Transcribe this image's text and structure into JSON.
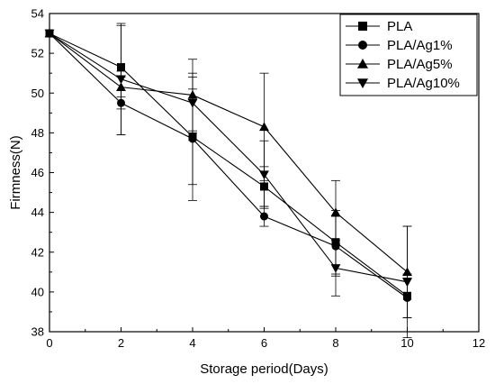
{
  "chart_data": {
    "type": "line",
    "title": "",
    "xlabel": "Storage period(Days)",
    "ylabel": "Firmness(N)",
    "xlim": [
      0,
      12
    ],
    "ylim": [
      38,
      54
    ],
    "xticks": [
      0,
      2,
      4,
      6,
      8,
      10,
      12
    ],
    "yticks": [
      38,
      40,
      42,
      44,
      46,
      48,
      50,
      52,
      54
    ],
    "grid": false,
    "legend_position": "top-right",
    "x": [
      0,
      2,
      4,
      6,
      8,
      10
    ],
    "series": [
      {
        "name": "PLA",
        "marker": "square",
        "values": [
          53.0,
          51.3,
          47.8,
          45.3,
          42.5,
          39.8
        ],
        "errors": [
          0,
          2.1,
          2.4,
          1.0,
          1.6,
          1.1
        ]
      },
      {
        "name": "PLA/Ag1%",
        "marker": "circle",
        "values": [
          53.0,
          49.5,
          47.7,
          43.8,
          42.3,
          39.7
        ],
        "errors": [
          0,
          1.6,
          3.1,
          0.5,
          1.5,
          1.0
        ]
      },
      {
        "name": "PLA/Ag5%",
        "marker": "triangle-up",
        "values": [
          53.0,
          50.3,
          49.9,
          48.3,
          44.0,
          41.0
        ],
        "errors": [
          0,
          0.5,
          1.8,
          2.7,
          1.6,
          2.3
        ]
      },
      {
        "name": "PLA/Ag10%",
        "marker": "triangle-down",
        "values": [
          53.0,
          50.7,
          49.5,
          45.9,
          41.2,
          40.5
        ],
        "errors": [
          0,
          2.8,
          1.5,
          1.7,
          1.4,
          2.8
        ]
      }
    ]
  }
}
